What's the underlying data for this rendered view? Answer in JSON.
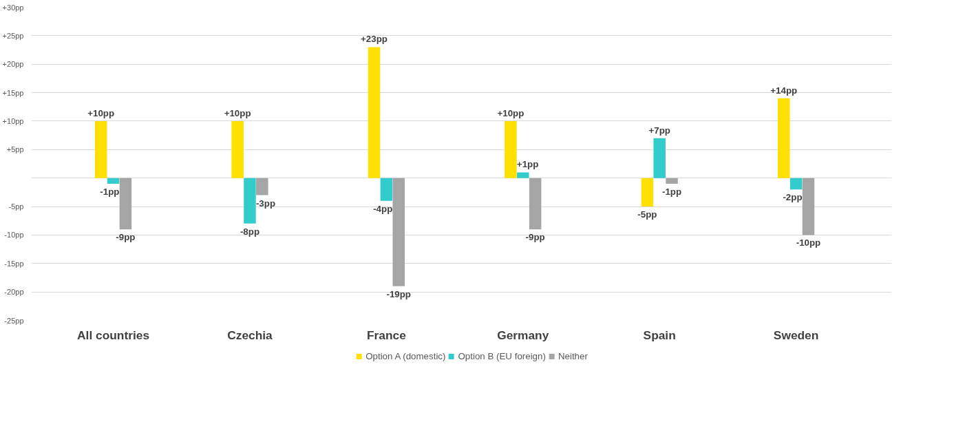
{
  "chart_data": {
    "type": "bar",
    "categories": [
      "All countries",
      "Czechia",
      "France",
      "Germany",
      "Spain",
      "Sweden"
    ],
    "series": [
      {
        "name": "Option A (domestic)",
        "color": "#ffe000",
        "values": [
          10,
          10,
          23,
          10,
          -5,
          14
        ],
        "value_labels": [
          "+10pp",
          "+10pp",
          "+23pp",
          "+10pp",
          "-5pp",
          "+14pp"
        ]
      },
      {
        "name": "Option B (EU foreign)",
        "color": "#33cccc",
        "values": [
          -1,
          -8,
          -4,
          1,
          7,
          -2
        ],
        "value_labels": [
          "-1pp",
          "-8pp",
          "-4pp",
          "+1pp",
          "+7pp",
          "-2pp"
        ]
      },
      {
        "name": "Neither",
        "color": "#a5a5a5",
        "values": [
          -9,
          -3,
          -19,
          -9,
          -1,
          -10
        ],
        "value_labels": [
          "-9pp",
          "-3pp",
          "-19pp",
          "-9pp",
          "-1pp",
          "-10pp"
        ]
      }
    ],
    "ylim": [
      -25,
      30
    ],
    "yticks": [
      {
        "value": -25,
        "label": "-25pp"
      },
      {
        "value": -20,
        "label": "-20pp"
      },
      {
        "value": -15,
        "label": "-15pp"
      },
      {
        "value": -10,
        "label": "-10pp"
      },
      {
        "value": -5,
        "label": "-5pp"
      },
      {
        "value": 0,
        "label": null
      },
      {
        "value": 5,
        "label": "+5pp"
      },
      {
        "value": 10,
        "label": "+10pp"
      },
      {
        "value": 15,
        "label": "+15pp"
      },
      {
        "value": 20,
        "label": "+20pp"
      },
      {
        "value": 25,
        "label": "+25pp"
      },
      {
        "value": 30,
        "label": "+30pp"
      }
    ],
    "grid": "y",
    "legend": "bottom"
  }
}
